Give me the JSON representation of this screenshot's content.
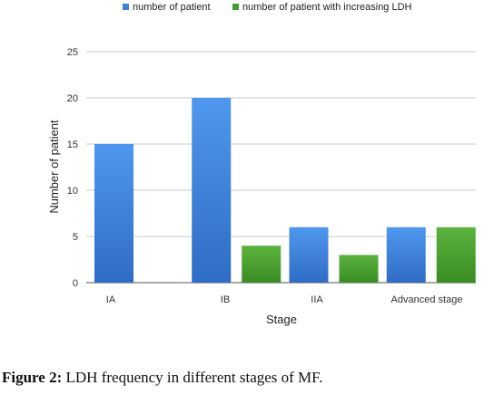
{
  "chart_data": {
    "type": "bar",
    "title": "",
    "xlabel": "Stage",
    "ylabel": "Number of patient",
    "categories": [
      "IA",
      "IB",
      "IIA",
      "Advanced stage"
    ],
    "series": [
      {
        "name": "number of patient",
        "values": [
          15,
          20,
          6,
          6
        ],
        "color": "#3c82d8"
      },
      {
        "name": "number of patient with increasing LDH",
        "values": [
          0,
          4,
          3,
          6
        ],
        "color": "#44a02c"
      }
    ],
    "ylim": [
      0,
      25
    ],
    "yticks": [
      0,
      5,
      10,
      15,
      20,
      25
    ],
    "grid": true,
    "legend_position": "top"
  },
  "caption": {
    "label": "Figure 2:",
    "text": " LDH frequency in different stages of MF."
  }
}
